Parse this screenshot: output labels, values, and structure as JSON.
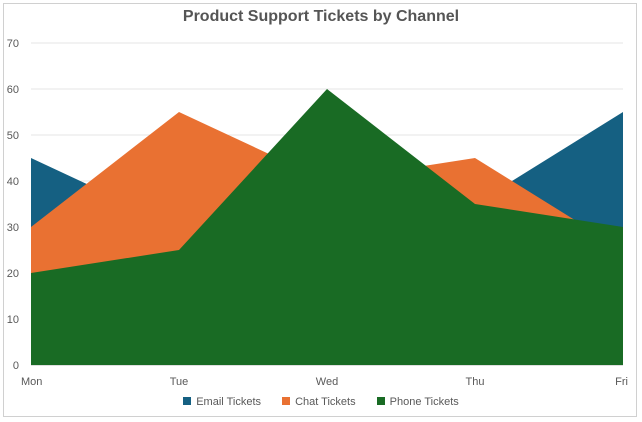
{
  "chart_data": {
    "type": "area",
    "title": "Product Support Tickets by Channel",
    "categories": [
      "Mon",
      "Tue",
      "Wed",
      "Thu",
      "Fri"
    ],
    "ylim": [
      0,
      70
    ],
    "yticks": [
      0,
      10,
      20,
      30,
      40,
      50,
      60,
      70
    ],
    "grid": true,
    "legend_position": "bottom",
    "series": [
      {
        "name": "Email Tickets",
        "values": [
          45,
          30,
          45,
          35,
          55
        ],
        "color": "#156082"
      },
      {
        "name": "Chat Tickets",
        "values": [
          30,
          55,
          40,
          45,
          25
        ],
        "color": "#e97132"
      },
      {
        "name": "Phone Tickets",
        "values": [
          20,
          25,
          60,
          35,
          30
        ],
        "color": "#196b24"
      }
    ]
  }
}
